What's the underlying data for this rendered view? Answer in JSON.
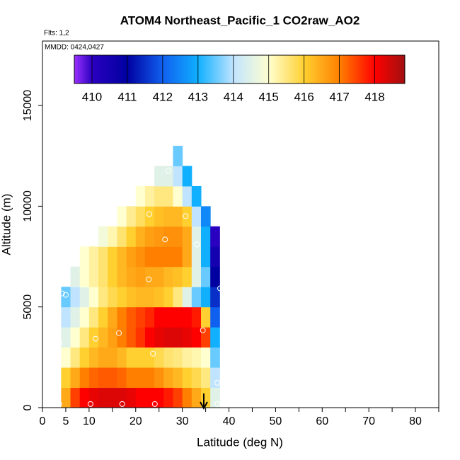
{
  "chart_data": {
    "type": "heatmap",
    "title": "ATOM4 Northeast_Pacific_1 CO2raw_AO2",
    "flights_note": "Flts: 1,2",
    "date_note": "MMDD: 0424,0427",
    "x_label": "Latitude (deg N)",
    "y_label": "Altitude (m)",
    "xlim": [
      0,
      85
    ],
    "ylim": [
      0,
      18200
    ],
    "xticks": [
      0,
      5,
      10,
      20,
      30,
      40,
      50,
      60,
      70,
      80
    ],
    "xminor_ticks": [
      15,
      25,
      35,
      45,
      55,
      65,
      75,
      85
    ],
    "yticks": [
      0,
      5000,
      10000,
      15000
    ],
    "x_bins": [
      4,
      6,
      8,
      10,
      12,
      14,
      16,
      18,
      20,
      22,
      24,
      26,
      28,
      30,
      32,
      34,
      36,
      38
    ],
    "y_bins": [
      0,
      1000,
      2000,
      3000,
      4000,
      5000,
      6000,
      7000,
      8000,
      9000,
      10000,
      11000,
      12000,
      13000
    ],
    "z": [
      [
        416.5,
        417.5,
        418,
        418.2,
        418.3,
        418.3,
        418.3,
        418.2,
        418,
        418,
        418,
        417.8,
        417.5,
        417,
        416.5,
        416,
        414.5
      ],
      [
        416,
        416.5,
        417,
        417.2,
        417.3,
        417.3,
        417.2,
        417,
        417,
        417,
        416.8,
        416.5,
        416.3,
        416,
        415.8,
        415.5,
        414
      ],
      [
        415,
        415.5,
        416,
        416.3,
        416.5,
        416.5,
        416.3,
        416,
        416,
        416,
        415.8,
        415.6,
        415.5,
        415.3,
        415.2,
        415,
        413.5
      ],
      [
        414.5,
        415,
        415.5,
        416,
        416.3,
        416.6,
        417,
        417.3,
        417.6,
        418,
        418.2,
        418.3,
        418.3,
        418.2,
        418,
        417.5,
        413
      ],
      [
        414,
        414.5,
        415,
        415.5,
        416,
        416.5,
        417,
        417.3,
        417.5,
        417.7,
        418,
        418,
        418,
        418,
        417.8,
        416,
        412
      ],
      [
        413.5,
        414,
        414.5,
        415,
        415.5,
        415.8,
        416,
        416.2,
        416.3,
        416.3,
        416.2,
        416,
        415.5,
        414.5,
        413.5,
        413,
        411.5
      ],
      [
        null,
        414.5,
        415,
        415.3,
        415.6,
        416,
        416.3,
        416.5,
        416.6,
        416.5,
        416.5,
        416.3,
        416.2,
        416,
        414.5,
        413.5,
        411
      ],
      [
        null,
        null,
        415,
        415.3,
        415.6,
        416,
        416.3,
        416.6,
        416.8,
        417,
        417,
        417,
        417,
        416.5,
        414.5,
        413,
        410.5
      ],
      [
        null,
        null,
        null,
        null,
        414.8,
        415.2,
        415.6,
        416,
        416.4,
        416.6,
        416.7,
        416.8,
        416.8,
        416.5,
        414.5,
        413,
        410
      ],
      [
        null,
        null,
        null,
        null,
        null,
        null,
        415,
        415.4,
        415.7,
        416,
        416.2,
        416.3,
        416.3,
        416,
        414,
        412.5,
        null
      ],
      [
        null,
        null,
        null,
        null,
        null,
        null,
        null,
        null,
        415,
        415.3,
        415.5,
        415.5,
        415,
        414,
        413,
        null,
        null
      ],
      [
        null,
        null,
        null,
        null,
        null,
        null,
        null,
        null,
        null,
        null,
        414.5,
        414.5,
        414,
        413,
        null,
        null,
        null
      ],
      [
        null,
        null,
        null,
        null,
        null,
        null,
        null,
        null,
        null,
        null,
        null,
        null,
        413.5,
        null,
        null,
        null,
        null
      ]
    ],
    "points": {
      "x": [
        3.6,
        10.3,
        17.1,
        24.1,
        37.5,
        37.5,
        23.7,
        3.6,
        11.4,
        16.4,
        34.4,
        4.2,
        5.0,
        38.1,
        22.8,
        26.3,
        33.1,
        22.9,
        30.7,
        27.0
      ],
      "y": [
        180,
        180,
        180,
        180,
        180,
        1230,
        2680,
        3200,
        3420,
        3700,
        3840,
        5670,
        5600,
        5920,
        6370,
        8350,
        8100,
        9610,
        9510,
        11760
      ]
    },
    "marker_lat": 34.6,
    "colorbar_lim": [
      409.5,
      418.85
    ],
    "colorbar_ticks": [
      410,
      411,
      412,
      413,
      414,
      415,
      416,
      417,
      418
    ],
    "colorscale": [
      [
        409.5,
        "#9b30ff"
      ],
      [
        410,
        "#2a00c0"
      ],
      [
        411,
        "#0000a0"
      ],
      [
        412,
        "#1060f0"
      ],
      [
        413,
        "#10b0ff"
      ],
      [
        414,
        "#c0e4ff"
      ],
      [
        415,
        "#ffffd0"
      ],
      [
        416,
        "#ffd030"
      ],
      [
        417,
        "#ff8000"
      ],
      [
        418,
        "#ff0000"
      ],
      [
        418.85,
        "#a01010"
      ]
    ]
  }
}
